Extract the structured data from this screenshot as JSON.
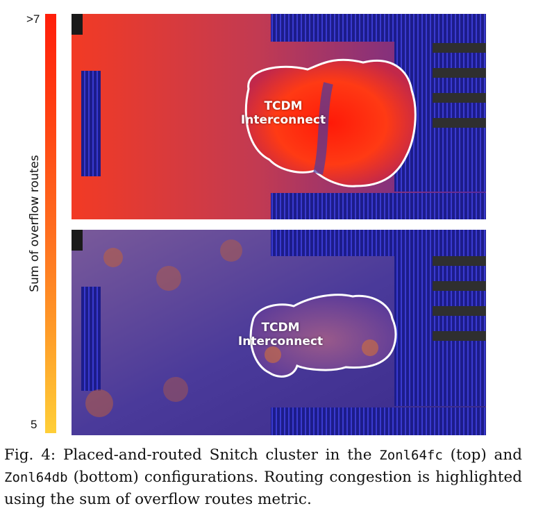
{
  "colorbar": {
    "title": "Sum of overflow routes",
    "max_label": ">7",
    "min_label": "5",
    "colors": [
      "#ffcf38",
      "#ff9a28",
      "#ff6a1e",
      "#ff3a10",
      "#ff1e0a"
    ]
  },
  "panels": {
    "top": {
      "region_label_line1": "TCDM",
      "region_label_line2": "Interconnect"
    },
    "bottom": {
      "region_label_line1": "TCDM",
      "region_label_line2": "Interconnect"
    }
  },
  "caption": {
    "prefix": "Fig. 4: Placed-and-routed Snitch cluster in the ",
    "config_a": "Zonl64fc",
    "middle": " (top) and ",
    "config_b": "Zonl64db",
    "suffix": " (bottom) configurations. Routing congestion is highlighted using the sum of overflow routes metric."
  }
}
